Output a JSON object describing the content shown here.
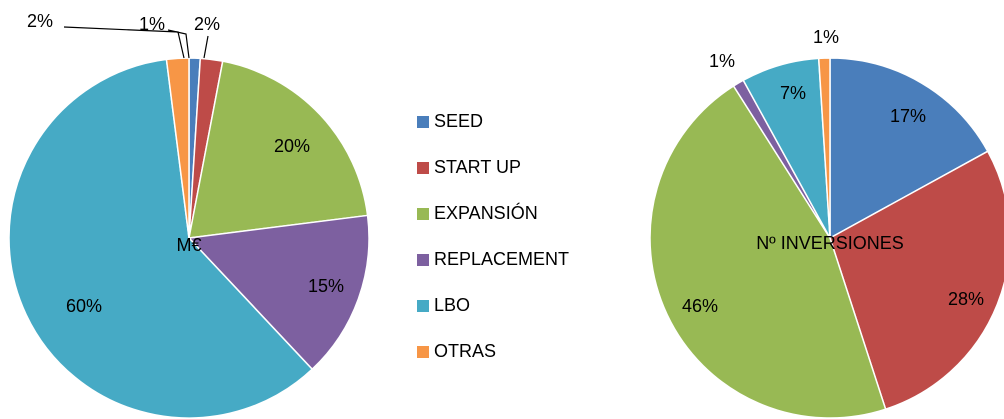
{
  "legend": {
    "categories": [
      "SEED",
      "START UP",
      "EXPANSIÓN",
      "REPLACEMENT",
      "LBO",
      "OTRAS"
    ],
    "colors": [
      "#4a7ebb",
      "#be4b48",
      "#98b954",
      "#7d60a0",
      "#46aac5",
      "#f79646"
    ]
  },
  "chart_data": [
    {
      "type": "pie",
      "title": "M€",
      "values": [
        1,
        2,
        20,
        15,
        60,
        2
      ],
      "value_labels": [
        "1%",
        "2%",
        "20%",
        "15%",
        "60%",
        "2%"
      ]
    },
    {
      "type": "pie",
      "title": "Nº INVERSIONES",
      "values": [
        17,
        28,
        46,
        1,
        7,
        1
      ],
      "value_labels": [
        "17%",
        "28%",
        "46%",
        "1%",
        "7%",
        "1%"
      ]
    }
  ]
}
